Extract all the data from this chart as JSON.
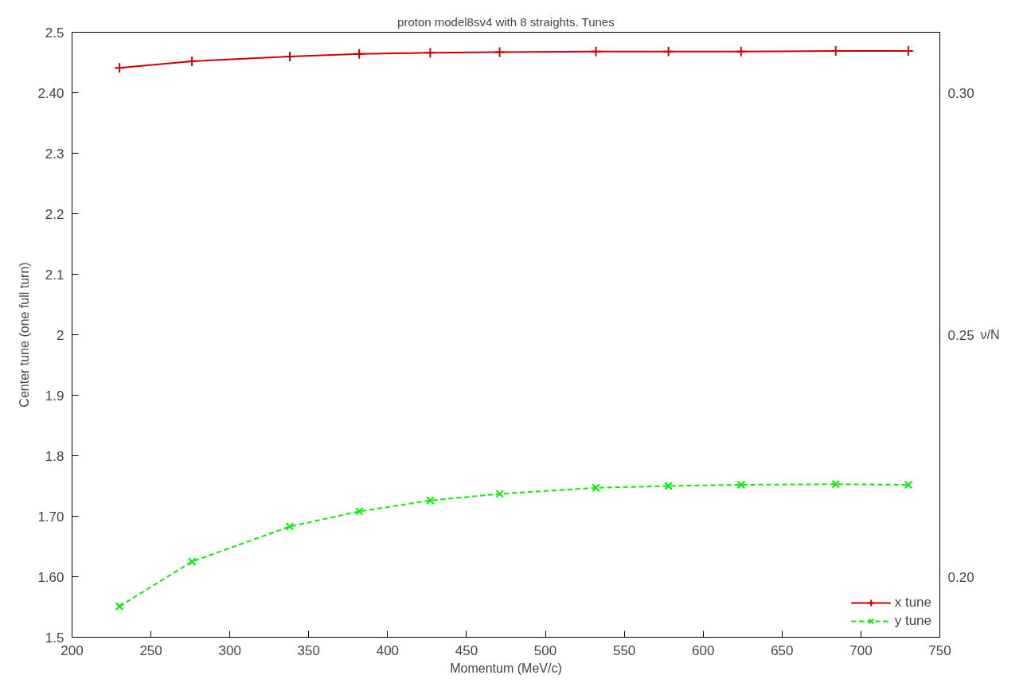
{
  "chart_data": {
    "type": "line",
    "title": "proton model8sv4 with 8 straights. Tunes",
    "xlabel": "Momentum (MeV/c)",
    "ylabel": "Center tune (one full turn)",
    "y2label": "ν/N",
    "x": [
      230,
      276,
      338,
      382,
      427,
      471,
      532,
      578,
      624,
      684,
      730
    ],
    "series": [
      {
        "name": "x tune",
        "color": "#cc0000",
        "marker": "cross",
        "line_style": "solid",
        "values": [
          2.441,
          2.452,
          2.46,
          2.464,
          2.466,
          2.467,
          2.468,
          2.468,
          2.468,
          2.469,
          2.469
        ]
      },
      {
        "name": "y tune",
        "color": "#00ee00",
        "marker": "x",
        "line_style": "dashed",
        "values": [
          1.551,
          1.625,
          1.683,
          1.708,
          1.726,
          1.737,
          1.747,
          1.75,
          1.752,
          1.753,
          1.752
        ]
      }
    ],
    "xlim": [
      200,
      750
    ],
    "xticks": [
      200,
      250,
      300,
      350,
      400,
      450,
      500,
      550,
      600,
      650,
      700,
      750
    ],
    "ylim": [
      1.5,
      2.5
    ],
    "yticks": [
      {
        "value": 1.5,
        "label": "1.5"
      },
      {
        "value": 1.6,
        "label": "1.60"
      },
      {
        "value": 1.7,
        "label": "1.70"
      },
      {
        "value": 1.8,
        "label": "1.8"
      },
      {
        "value": 1.9,
        "label": "1.9"
      },
      {
        "value": 2,
        "label": "2"
      },
      {
        "value": 2.1,
        "label": "2.1"
      },
      {
        "value": 2.2,
        "label": "2.2"
      },
      {
        "value": 2.3,
        "label": "2.3"
      },
      {
        "value": 2.4,
        "label": "2.40"
      },
      {
        "value": 2.5,
        "label": "2.5"
      }
    ],
    "y2lim": [
      0.1875,
      0.3125
    ],
    "y2ticks": [
      {
        "value": 0.2,
        "label": "0.20"
      },
      {
        "value": 0.25,
        "label": "0.25"
      },
      {
        "value": 0.3,
        "label": "0.30"
      }
    ],
    "grid": false,
    "legend": "bottom right"
  }
}
